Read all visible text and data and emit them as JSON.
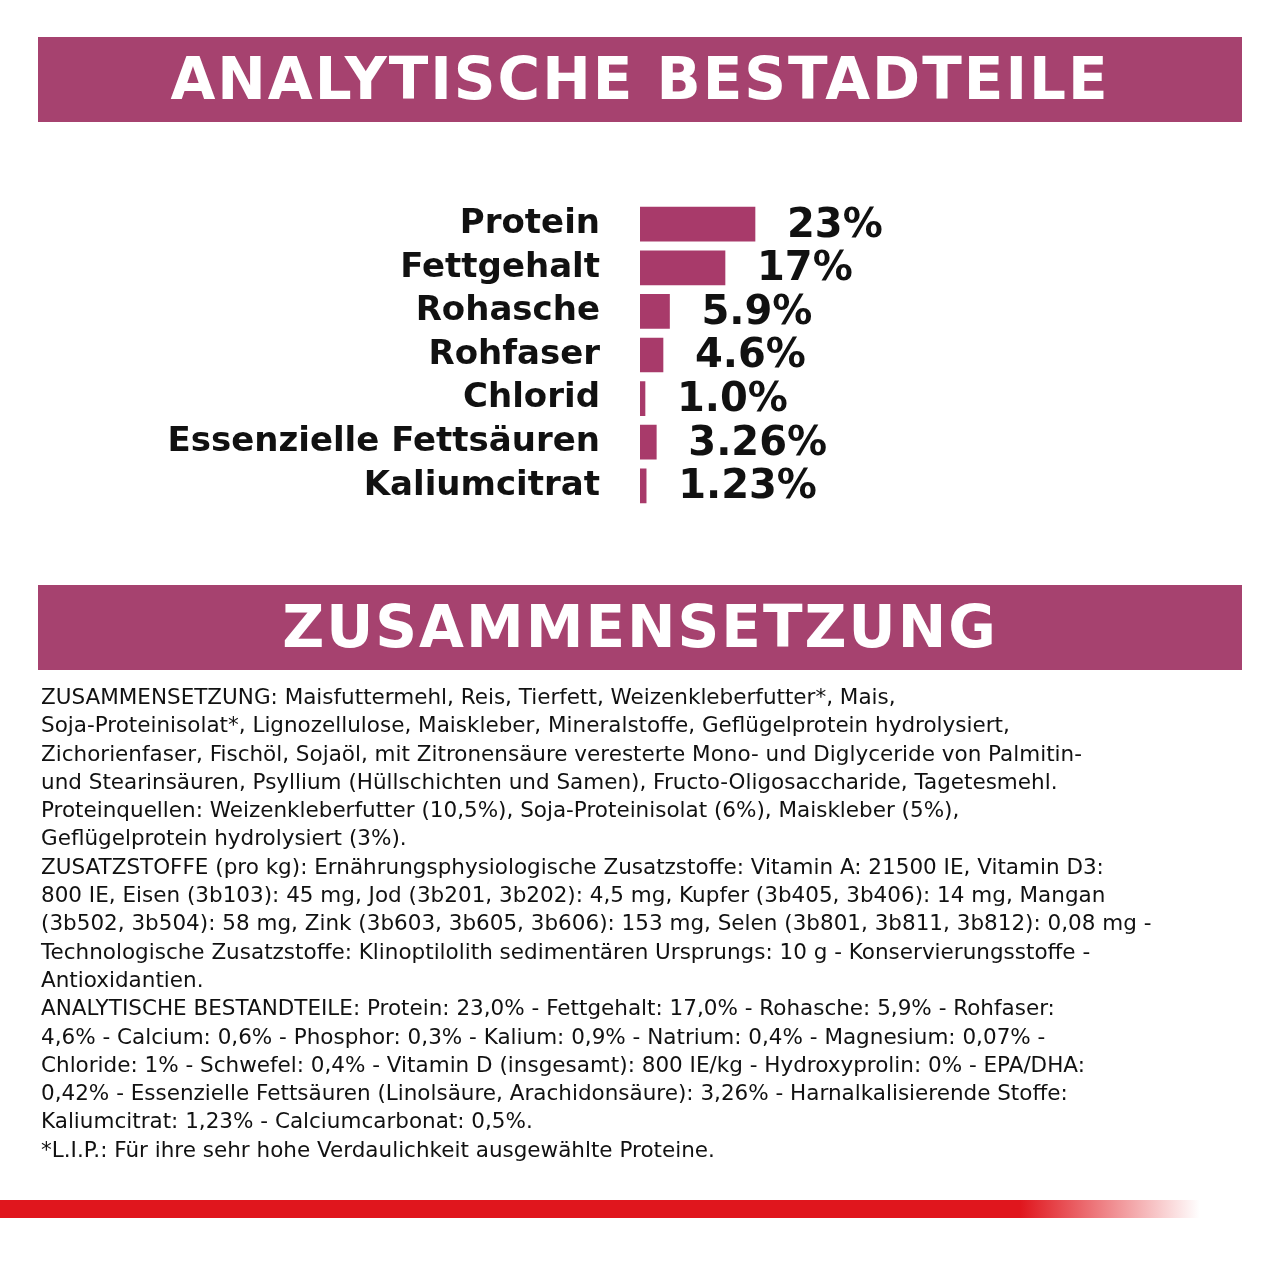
{
  "chart_data": {
    "type": "bar",
    "orientation": "horizontal",
    "title": "ANALYTISCHE BESTADTEILE",
    "tick_labels": "y",
    "color": "#a83a6a",
    "categories": [
      "Protein",
      "Fettgehalt",
      "Rohasche",
      "Rohfaser",
      "Chlorid",
      "Essenzielle Fettsäuren",
      "Kaliumcitrat"
    ],
    "values": [
      23,
      17,
      5.9,
      4.6,
      1.0,
      3.26,
      1.23
    ],
    "value_labels": [
      "23%",
      "17%",
      "5.9%",
      "4.6%",
      "1.0%",
      "3.26%",
      "1.23%"
    ],
    "annotations": [
      "ZUSAMMENSETZUNG",
      "ZUSAMMENSETZUNG: Maisfuttermehl, Reis, Tierfett, Weizenkleberfutter*, Mais,",
      "Soja-Proteinisolat*, Lignozellulose, Maiskleber, Mineralstoffe, Geflügelprotein hydrolysiert,",
      "Zichorienfaser, Fischöl, Sojaöl, mit Zitronensäure veresterte Mono- und Diglyceride von Palmitin-",
      "und Stearinsäuren, Psyllium (Hüllschichten und Samen), Fructo-Oligosaccharide, Tagetesmehl.",
      "Proteinquellen: Weizenkleberfutter (10,5%), Soja-Proteinisolat (6%), Maiskleber (5%),",
      "Geflügelprotein hydrolysiert (3%).",
      "ZUSATZSTOFFE (pro kg): Ernährungsphysiologische Zusatzstoffe: Vitamin A: 21500 IE, Vitamin D3:",
      "800 IE, Eisen (3b103): 45 mg, Jod (3b201, 3b202): 4,5 mg, Kupfer (3b405, 3b406): 14 mg, Mangan",
      "(3b502, 3b504): 58 mg, Zink (3b603, 3b605, 3b606): 153 mg, Selen (3b801, 3b811, 3b812): 0,08 mg -",
      "Technologische Zusatzstoffe: Klinoptilolith sedimentären Ursprungs: 10 g - Konservierungsstoffe -",
      "Antioxidantien.",
      "ANALYTISCHE BESTANDTEILE: Protein: 23,0% - Fettgehalt: 17,0% - Rohasche: 5,9% - Rohfaser:",
      "4,6% - Calcium: 0,6% - Phosphor: 0,3% - Kalium: 0,9% - Natrium: 0,4% - Magnesium: 0,07% -",
      "Chloride: 1% - Schwefel: 0,4% - Vitamin D (insgesamt): 800 IE/kg - Hydroxyprolin: 0% - EPA/DHA:",
      "0,42% - Essenzielle Fettsäuren (Linolsäure, Arachidonsäure): 3,26% - Harnalkalisierende Stoffe:",
      "Kaliumcitrat: 1,23% - Calciumcarbonat: 0,5%.",
      "*L.I.P.: Für ihre sehr hohe Verdaulichkeit ausgewählte Proteine."
    ]
  }
}
